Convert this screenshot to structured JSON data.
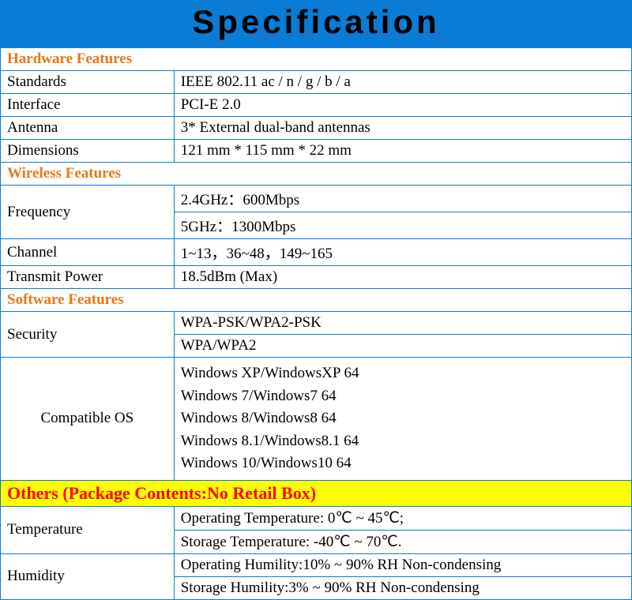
{
  "title": "Specification",
  "title_bg_color": "#0a7cd5",
  "border_color": "#0a7cd5",
  "section_header_color": "#e67817",
  "others_bg_color": "#ffff00",
  "others_text_color": "#ff0000",
  "sections": {
    "hardware": {
      "header": "Hardware Features",
      "rows": [
        {
          "label": "Standards",
          "value": "IEEE 802.11 ac / n / g / b / a"
        },
        {
          "label": "Interface",
          "value": "PCI-E 2.0"
        },
        {
          "label": "Antenna",
          "value": "3* External dual-band antennas"
        },
        {
          "label": "Dimensions",
          "value": "121 mm * 115 mm * 22 mm"
        }
      ]
    },
    "wireless": {
      "header": "Wireless Features",
      "frequency": {
        "label": "Frequency",
        "values": [
          "2.4GHz：600Mbps",
          "5GHz：1300Mbps"
        ]
      },
      "rows": [
        {
          "label": "Channel",
          "value": "1~13，36~48，149~165"
        },
        {
          "label": "Transmit Power",
          "value": "18.5dBm (Max)"
        }
      ]
    },
    "software": {
      "header": "Software Features",
      "security": {
        "label": "Security",
        "values": [
          "WPA-PSK/WPA2-PSK",
          "WPA/WPA2"
        ]
      },
      "compatible_os": {
        "label": "Compatible OS",
        "values": [
          "Windows XP/WindowsXP 64",
          "Windows 7/Windows7 64",
          "Windows 8/Windows8 64",
          "Windows 8.1/Windows8.1 64",
          "Windows 10/Windows10 64"
        ]
      }
    },
    "others": {
      "header": "Others (Package Contents:No Retail Box)",
      "temperature": {
        "label": "Temperature",
        "values": [
          "Operating Temperature: 0℃ ~ 45℃;",
          "Storage Temperature: -40℃ ~ 70℃."
        ]
      },
      "humidity": {
        "label": "Humidity",
        "values": [
          "Operating Humility:10% ~ 90% RH Non-condensing",
          "Storage Humility:3% ~ 90% RH Non-condensing"
        ]
      }
    }
  }
}
